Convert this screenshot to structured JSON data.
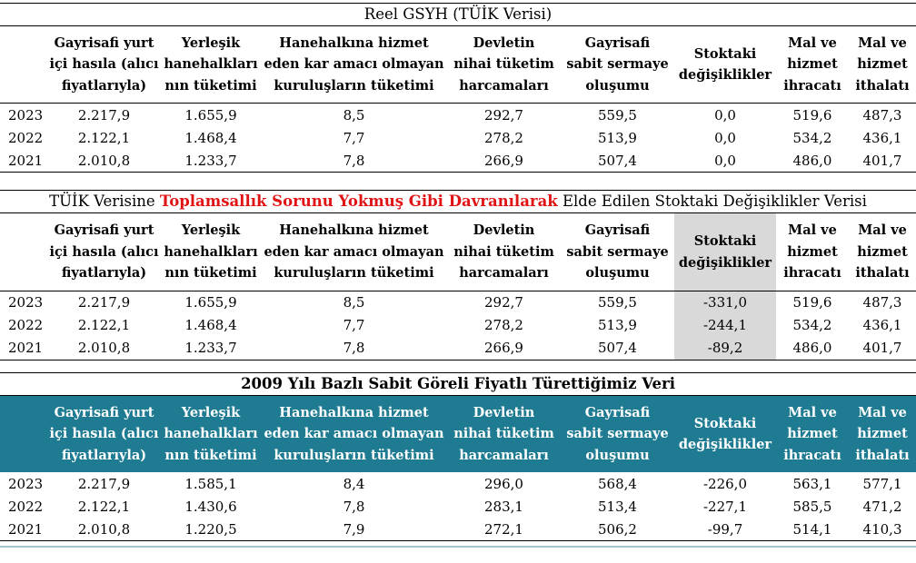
{
  "colors": {
    "header_teal": "#1f7b92",
    "highlight_gray": "#d9d9d9",
    "alert_red": "#e01414",
    "error_green": "#2e9442",
    "accent_underline": "#a8c4cd",
    "rule_black": "#000000"
  },
  "headers": [
    "",
    "Gayrisafi yurt\niçi hasıla (alıcı\nfiyatlarıyla)",
    "Yerleşik\nhanehalkları\nnın tüketimi",
    "Hanehalkına hizmet\neden kar amacı olmayan\nkuruluşların tüketimi",
    "Devletin\nnihai tüketim\nharcamaları",
    "Gayrisafi\nsabit sermaye\noluşumu",
    "Stoktaki\ndeğişiklikler",
    "Mal ve\nhizmet\nihracatı",
    "Mal ve\nhizmet\nithalatı"
  ],
  "tables": [
    {
      "id": "tuik-reel-gsyh",
      "title_segments": [
        {
          "text": "Reel GSYH (TÜİK Verisi)",
          "emphasis": "normal"
        }
      ],
      "header_style": "plain",
      "highlight_column": null,
      "error_markers": false,
      "bottom_accent": false,
      "rows": [
        {
          "year": "2023",
          "values": [
            "2.217,9",
            "1.655,9",
            "8,5",
            "292,7",
            "559,5",
            "0,0",
            "519,6",
            "487,3"
          ]
        },
        {
          "year": "2022",
          "values": [
            "2.122,1",
            "1.468,4",
            "7,7",
            "278,2",
            "513,9",
            "0,0",
            "534,2",
            "436,1"
          ]
        },
        {
          "year": "2021",
          "values": [
            "2.010,8",
            "1.233,7",
            "7,8",
            "266,9",
            "507,4",
            "0,0",
            "486,0",
            "401,7"
          ]
        }
      ]
    },
    {
      "id": "toplamsallik-yokmus-gibi",
      "title_segments": [
        {
          "text": "TÜİK Verisine ",
          "emphasis": "normal"
        },
        {
          "text": "Toplamsallık Sorunu Yokmuş Gibi Davranılarak",
          "emphasis": "red-bold"
        },
        {
          "text": " Elde Edilen Stoktaki Değişiklikler Verisi",
          "emphasis": "normal"
        }
      ],
      "header_style": "plain",
      "highlight_column": 6,
      "error_markers": true,
      "bottom_accent": false,
      "rows": [
        {
          "year": "2023",
          "values": [
            "2.217,9",
            "1.655,9",
            "8,5",
            "292,7",
            "559,5",
            "-331,0",
            "519,6",
            "487,3"
          ]
        },
        {
          "year": "2022",
          "values": [
            "2.122,1",
            "1.468,4",
            "7,7",
            "278,2",
            "513,9",
            "-244,1",
            "534,2",
            "436,1"
          ]
        },
        {
          "year": "2021",
          "values": [
            "2.010,8",
            "1.233,7",
            "7,8",
            "266,9",
            "507,4",
            "-89,2",
            "486,0",
            "401,7"
          ]
        }
      ]
    },
    {
      "id": "tureted-2009-bazli",
      "title_segments": [
        {
          "text": "2009 Yılı Bazlı Sabit Göreli Fiyatlı Türettiğimiz Veri",
          "emphasis": "bold"
        }
      ],
      "header_style": "teal",
      "highlight_column": null,
      "error_markers": false,
      "bottom_accent": true,
      "rows": [
        {
          "year": "2023",
          "values": [
            "2.217,9",
            "1.585,1",
            "8,4",
            "296,0",
            "568,4",
            "-226,0",
            "563,1",
            "577,1"
          ]
        },
        {
          "year": "2022",
          "values": [
            "2.122,1",
            "1.430,6",
            "7,8",
            "283,1",
            "513,4",
            "-227,1",
            "585,5",
            "471,2"
          ]
        },
        {
          "year": "2021",
          "values": [
            "2.010,8",
            "1.220,5",
            "7,9",
            "272,1",
            "506,2",
            "-99,7",
            "514,1",
            "410,3"
          ]
        }
      ]
    }
  ]
}
